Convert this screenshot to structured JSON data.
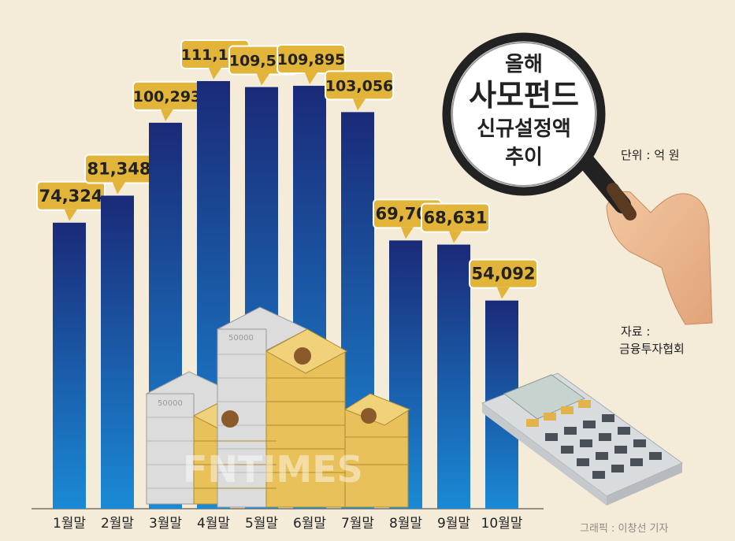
{
  "chart_data": {
    "type": "bar",
    "title_lines": [
      "올해",
      "사모펀드",
      "신규설정액",
      "추이"
    ],
    "unit": "단위 : 억 원",
    "categories": [
      "1월말",
      "2월말",
      "3월말",
      "4월말",
      "5월말",
      "6월말",
      "7월말",
      "8월말",
      "9월말",
      "10월말"
    ],
    "values": [
      74324,
      81348,
      100293,
      111118,
      109565,
      109895,
      103056,
      69707,
      68631,
      54092
    ],
    "value_labels": [
      "74,324",
      "81,348",
      "100,293",
      "111,118",
      "109,565",
      "109,895",
      "103,056",
      "69,707",
      "68,631",
      "54,092"
    ],
    "ylim": [
      0,
      115000
    ],
    "grid": false,
    "colors": {
      "bar_top": "#1a2a78",
      "bar_bottom": "#1a8ad6",
      "callout": "#e2b43a",
      "background": "#f4ecd9"
    }
  },
  "source": {
    "title": "자료 :",
    "name": "금융투자협회"
  },
  "credit": "그래픽 : 이창선 기자",
  "watermark": "FNTIMES",
  "illustrations": [
    "magnifier-icon",
    "cash-stack-illustration",
    "calculator-icon"
  ]
}
